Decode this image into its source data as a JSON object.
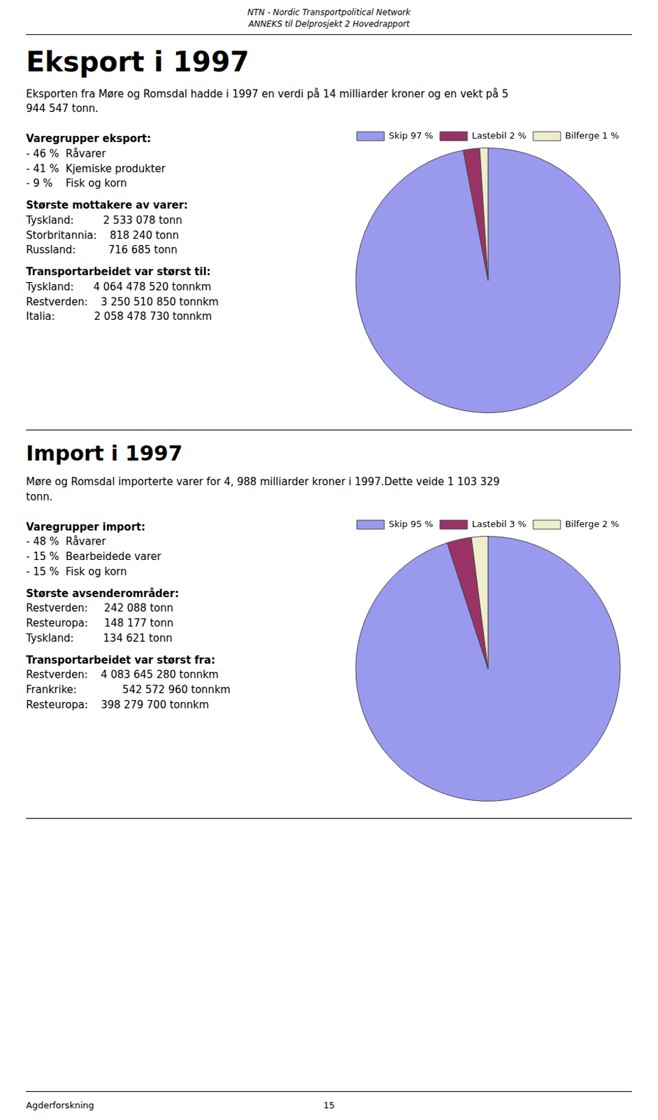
{
  "header": [
    "NTN - Nordic Transportpolitical Network",
    "ANNEKS til Delprosjekt 2 Hovedrapport"
  ],
  "chart_data": [
    {
      "type": "pie",
      "title": "Eksport i 1997",
      "subtitle": [
        "Eksporten fra Møre og Romsdal hadde i 1997 en verdi på 14 milliarder kroner og en vekt på 5",
        "944 547 tonn."
      ],
      "annotations": [
        {
          "heading": "Varegrupper eksport:",
          "lines": [
            "- 46 %  Råvarer",
            "- 41 %  Kjemiske produkter",
            "- 9 %    Fisk og korn"
          ]
        },
        {
          "heading": "Største mottakere av varer:",
          "lines": [
            "Tyskland:         2 533 078 tonn",
            "Storbritannia:    818 240 tonn",
            "Russland:          716 685 tonn"
          ]
        },
        {
          "heading": "Transportarbeidet var størst til:",
          "lines": [
            "Tyskland:      4 064 478 520 tonnkm",
            "Restverden:    3 250 510 850 tonnkm",
            "Italia:            2 058 478 730 tonnkm"
          ]
        }
      ],
      "categories": [
        "Skip 97 %",
        "Lastebil 2 %",
        "Bilferge 1 %"
      ],
      "values": [
        97,
        2,
        1
      ],
      "colors": [
        "#9999EE",
        "#993366",
        "#EEEECC"
      ],
      "legend": "top"
    },
    {
      "type": "pie",
      "title": "Import i 1997",
      "subtitle": [
        "Møre og Romsdal importerte varer for 4, 988 milliarder kroner i 1997.Dette veide 1 103 329",
        "tonn."
      ],
      "annotations": [
        {
          "heading": "Varegrupper import:",
          "lines": [
            "- 48 %  Råvarer",
            "- 15 %  Bearbeidede varer",
            "- 15 %  Fisk og korn"
          ]
        },
        {
          "heading": "Største avsenderområder:",
          "lines": [
            "Restverden:     242 088 tonn",
            "Resteuropa:     148 177 tonn",
            "Tyskland:         134 621 tonn"
          ]
        },
        {
          "heading": "Transportarbeidet var størst fra:",
          "lines": [
            "Restverden:    4 083 645 280 tonnkm",
            "Frankrike:              542 572 960 tonnkm",
            "Resteuropa:    398 279 700 tonnkm"
          ]
        }
      ],
      "categories": [
        "Skip 95 %",
        "Lastebil 3 %",
        "Bilferge 2 %"
      ],
      "values": [
        95,
        3,
        2
      ],
      "colors": [
        "#9999EE",
        "#993366",
        "#EEEECC"
      ],
      "legend": "top"
    }
  ],
  "footer": [
    "Agderforskning",
    "15"
  ]
}
